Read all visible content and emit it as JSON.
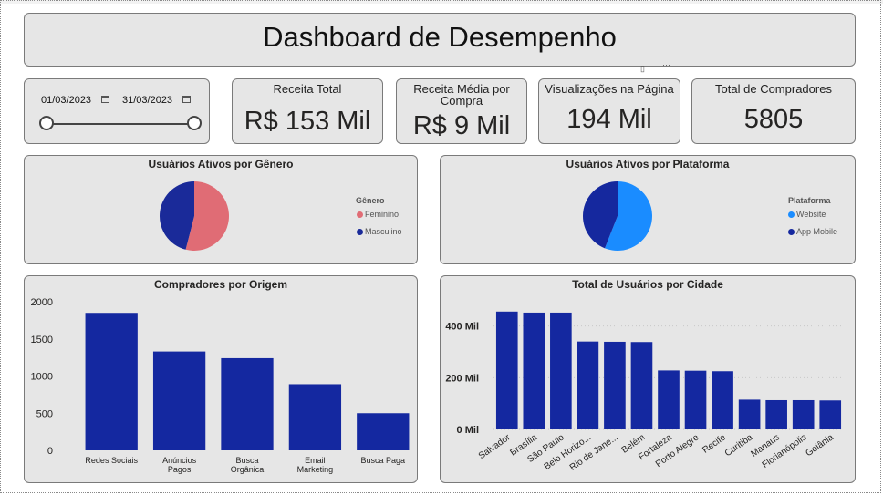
{
  "header": {
    "title": "Dashboard de Desempenho"
  },
  "date_filter": {
    "start": "01/03/2023",
    "end": "31/03/2023",
    "calendar_icon": "calendar-icon",
    "range_fraction": [
      0,
      1
    ]
  },
  "kpis": [
    {
      "label": "Receita Total",
      "value": "R$ 153 Mil"
    },
    {
      "label": "Receita Média por Compra",
      "value": "R$ 9 Mil"
    },
    {
      "label": "Visualizações na Página",
      "value": "194 Mil"
    },
    {
      "label": "Total de Compradores",
      "value": "5805"
    }
  ],
  "colors": {
    "bar": "#1428a0",
    "feminino": "#e06c75",
    "masculino": "#1a2a99",
    "website": "#1a8cff",
    "app_mobile": "#15289e",
    "card_bg": "#e6e6e6"
  },
  "chart_data": [
    {
      "type": "pie",
      "title": "Usuários Ativos por Gênero",
      "legend_title": "Gênero",
      "legend_position": "right",
      "labels": [
        "Feminino",
        "Masculino"
      ],
      "values": [
        54,
        46
      ],
      "colors": [
        "#e06c75",
        "#1a2a99"
      ]
    },
    {
      "type": "pie",
      "title": "Usuários Ativos por Plataforma",
      "legend_title": "Plataforma",
      "legend_position": "right",
      "labels": [
        "Website",
        "App Mobile"
      ],
      "values": [
        56,
        44
      ],
      "colors": [
        "#1a8cff",
        "#15289e"
      ]
    },
    {
      "type": "bar",
      "title": "Compradores por Origem",
      "categories": [
        "Redes Sociais",
        "Anúncios Pagos",
        "Busca Orgânica",
        "Email Marketing",
        "Busca Paga"
      ],
      "values": [
        1850,
        1330,
        1240,
        890,
        500
      ],
      "ylim": [
        0,
        2000
      ],
      "yticks": [
        "0",
        "500",
        "1000",
        "1500",
        "2000"
      ],
      "ytick_values": [
        0,
        500,
        1000,
        1500,
        2000
      ]
    },
    {
      "type": "bar",
      "title": "Total de Usuários por Cidade",
      "categories": [
        "Salvador",
        "Brasília",
        "São Paulo",
        "Belo Horizo...",
        "Rio de Jane...",
        "Belém",
        "Fortaleza",
        "Porto Alegre",
        "Recife",
        "Curitiba",
        "Manaus",
        "Florianópolis",
        "Goiânia"
      ],
      "values": [
        456,
        452,
        452,
        340,
        339,
        338,
        228,
        227,
        225,
        115,
        113,
        113,
        112
      ],
      "unit": "Mil",
      "ylim": [
        0,
        480
      ],
      "yticks": [
        "0 Mil",
        "200 Mil",
        "400 Mil"
      ],
      "ytick_values": [
        0,
        200,
        400
      ],
      "grid": true
    }
  ]
}
